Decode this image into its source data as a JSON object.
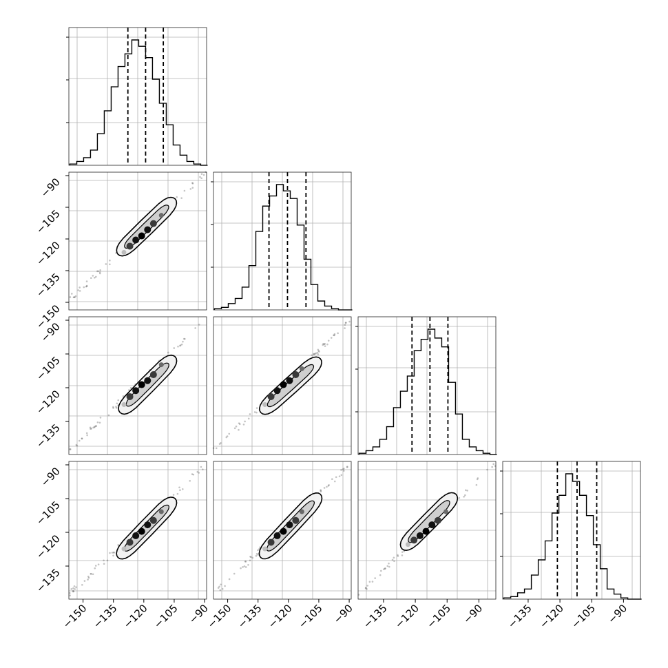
{
  "chart_data": {
    "type": "corner",
    "grid": true,
    "n_params": 4,
    "quantile_lines_style": "dashed",
    "diagonal_histograms": [
      {
        "x_range": [
          -160,
          -90
        ],
        "quantiles": [
          -130,
          -121,
          -112
        ],
        "bin_width": 3.5,
        "counts": [
          1,
          3,
          6,
          12,
          25,
          43,
          62,
          78,
          88,
          99,
          94,
          85,
          68,
          49,
          32,
          16,
          8,
          3,
          1,
          0
        ]
      },
      {
        "x_range": [
          -155,
          -88
        ],
        "quantiles": [
          -128,
          -119,
          -110
        ],
        "bin_width": 3.35,
        "counts": [
          1,
          2,
          5,
          9,
          18,
          35,
          62,
          82,
          90,
          99,
          94,
          88,
          67,
          40,
          20,
          7,
          3,
          1,
          0,
          0
        ]
      },
      {
        "x_range": [
          -147,
          -78
        ],
        "quantiles": [
          -120,
          -111,
          -102
        ],
        "bin_width": 3.45,
        "counts": [
          1,
          3,
          6,
          12,
          22,
          37,
          50,
          62,
          82,
          91,
          99,
          92,
          85,
          57,
          32,
          12,
          6,
          3,
          1,
          0
        ]
      },
      {
        "x_range": [
          -147,
          -84
        ],
        "quantiles": [
          -122,
          -113,
          -104
        ],
        "bin_width": 3.15,
        "counts": [
          1,
          2,
          5,
          8,
          19,
          31,
          46,
          68,
          82,
          99,
          93,
          82,
          66,
          43,
          24,
          8,
          4,
          1,
          0,
          0
        ]
      }
    ],
    "pairwise": [
      {
        "row": 1,
        "col": 0,
        "x_range": [
          -160,
          -90
        ],
        "y_range": [
          -155,
          -88
        ],
        "start": [
          -160,
          -150
        ],
        "end": [
          -90,
          -88
        ],
        "core": [
          [
            -135,
            -128
          ],
          [
            -106,
            -101
          ]
        ],
        "dots": [
          [
            -132,
            -127
          ],
          [
            -129,
            -124
          ],
          [
            -126,
            -121
          ],
          [
            -123,
            -119
          ],
          [
            -120,
            -116
          ],
          [
            -117,
            -113
          ],
          [
            -113,
            -109
          ]
        ]
      },
      {
        "row": 2,
        "col": 0,
        "x_range": [
          -160,
          -90
        ],
        "y_range": [
          -147,
          -78
        ],
        "start": [
          -160,
          -145
        ],
        "end": [
          -90,
          -79
        ],
        "core": [
          [
            -134,
            -126
          ],
          [
            -106,
            -98
          ]
        ],
        "dots": [
          [
            -132,
            -122
          ],
          [
            -129,
            -118
          ],
          [
            -126,
            -115
          ],
          [
            -123,
            -112
          ],
          [
            -120,
            -110
          ],
          [
            -117,
            -107
          ],
          [
            -113,
            -102
          ]
        ]
      },
      {
        "row": 2,
        "col": 1,
        "x_range": [
          -155,
          -88
        ],
        "y_range": [
          -147,
          -78
        ],
        "start": [
          -155,
          -145
        ],
        "end": [
          -88,
          -80
        ],
        "core": [
          [
            -132,
            -126
          ],
          [
            -103,
            -99
          ]
        ],
        "dots": [
          [
            -130,
            -122
          ],
          [
            -127,
            -118
          ],
          [
            -124,
            -115
          ],
          [
            -121,
            -112
          ],
          [
            -118,
            -110
          ],
          [
            -115,
            -107
          ],
          [
            -112,
            -104
          ]
        ]
      },
      {
        "row": 3,
        "col": 0,
        "x_range": [
          -160,
          -90
        ],
        "y_range": [
          -147,
          -84
        ],
        "start": [
          -160,
          -145
        ],
        "end": [
          -90,
          -85
        ],
        "core": [
          [
            -135,
            -128
          ],
          [
            -106,
            -101
          ]
        ],
        "dots": [
          [
            -132,
            -124
          ],
          [
            -129,
            -121
          ],
          [
            -126,
            -118
          ],
          [
            -123,
            -116
          ],
          [
            -120,
            -113
          ],
          [
            -117,
            -111
          ],
          [
            -113,
            -107
          ]
        ]
      },
      {
        "row": 3,
        "col": 1,
        "x_range": [
          -155,
          -88
        ],
        "y_range": [
          -147,
          -84
        ],
        "start": [
          -155,
          -145
        ],
        "end": [
          -88,
          -85
        ],
        "core": [
          [
            -132,
            -128
          ],
          [
            -103,
            -99
          ]
        ],
        "dots": [
          [
            -130,
            -124
          ],
          [
            -127,
            -121
          ],
          [
            -124,
            -118
          ],
          [
            -121,
            -116
          ],
          [
            -118,
            -113
          ],
          [
            -115,
            -111
          ],
          [
            -112,
            -107
          ]
        ]
      },
      {
        "row": 3,
        "col": 2,
        "x_range": [
          -147,
          -78
        ],
        "y_range": [
          -147,
          -84
        ],
        "start": [
          -147,
          -145
        ],
        "end": [
          -78,
          -85
        ],
        "core": [
          [
            -125,
            -124
          ],
          [
            -98,
            -99
          ]
        ],
        "dots": [
          [
            -122,
            -122
          ],
          [
            -119,
            -120
          ],
          [
            -116,
            -118
          ],
          [
            -113,
            -116
          ],
          [
            -110,
            -113
          ],
          [
            -107,
            -111
          ],
          [
            -103,
            -107
          ]
        ]
      }
    ],
    "x_tick_labels": [
      [
        -150,
        -135,
        -120,
        -105,
        -90
      ],
      [
        -150,
        -135,
        -120,
        -105,
        -90
      ],
      [
        -135,
        -120,
        -105,
        -90
      ],
      [
        -135,
        -120,
        -105,
        -90
      ]
    ],
    "y_tick_labels": [
      [],
      [
        -90,
        -105,
        -120,
        -135,
        -150
      ],
      [
        -90,
        -105,
        -120,
        -135
      ],
      [
        -90,
        -105,
        -120,
        -135
      ]
    ]
  }
}
